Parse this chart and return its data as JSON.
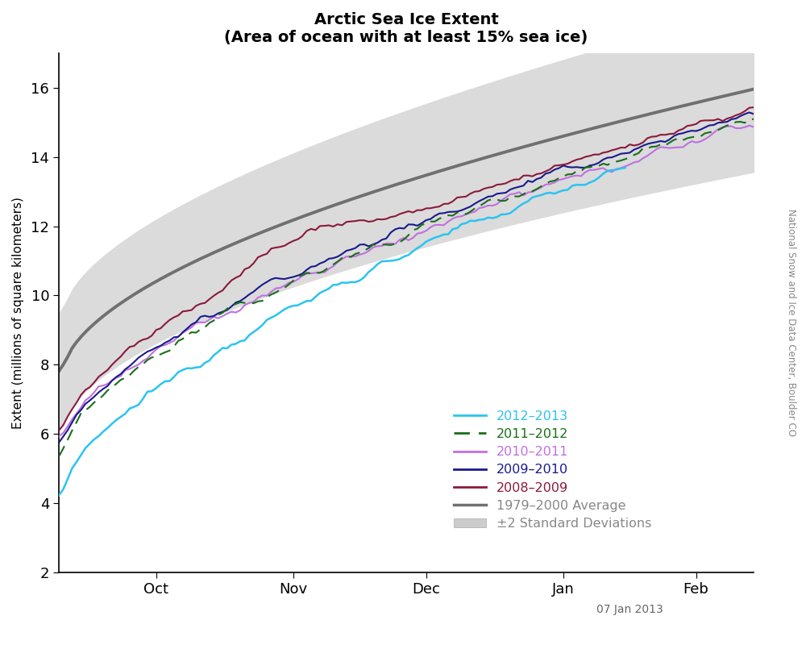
{
  "title": "Arctic Sea Ice Extent",
  "subtitle": "(Area of ocean with at least 15% sea ice)",
  "ylabel": "Extent (millions of square kilometers)",
  "watermark": "07 Jan 2013",
  "side_label": "National Snow and Ice Data Center, Boulder CO",
  "ylim": [
    2,
    17
  ],
  "yticks": [
    2,
    4,
    6,
    8,
    10,
    12,
    14,
    16
  ],
  "colors": {
    "2012_2013": "#2BC4F0",
    "2011_2012": "#1A6E1A",
    "2010_2011": "#C070E0",
    "2009_2010": "#1A1A8C",
    "2008_2009": "#8B1A3A",
    "average": "#707070",
    "shade": "#CCCCCC"
  },
  "legend_labels": [
    "2012–2013",
    "2011–2012",
    "2010–2011",
    "2009–2010",
    "2008–2009",
    "1979–2000 Average",
    "±2 Standard Deviations"
  ],
  "xtick_labels": [
    "Oct",
    "Nov",
    "Dec",
    "Jan",
    "Feb"
  ],
  "background_color": "#FFFFFF",
  "n_days": 160,
  "xtick_positions": [
    22,
    53,
    83,
    114,
    144
  ],
  "xlim": [
    0,
    157
  ]
}
